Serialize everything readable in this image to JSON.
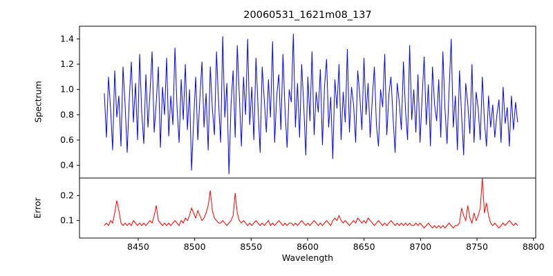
{
  "figure": {
    "title": "20060531_1621m08_137",
    "xlabel": "Wavelength",
    "background": "#ffffff",
    "frame_color": "#000000"
  },
  "chart_data": [
    {
      "type": "line",
      "name": "spectrum",
      "title": "20060531_1621m08_137",
      "ylabel": "Spectrum",
      "color": "#0000ff",
      "ylim": [
        0.3,
        1.5
      ],
      "yticks": [
        0.4,
        0.6,
        0.8,
        1.0,
        1.2,
        1.4
      ],
      "x_start": 8420,
      "x_end": 8786,
      "values": [
        0.97,
        0.62,
        1.1,
        0.85,
        0.52,
        1.15,
        0.78,
        0.95,
        0.55,
        1.18,
        0.88,
        0.5,
        0.92,
        1.22,
        0.74,
        1.05,
        0.6,
        1.28,
        0.82,
        0.57,
        1.12,
        0.7,
        0.98,
        1.3,
        0.66,
        0.9,
        1.18,
        0.54,
        1.02,
        0.8,
        1.25,
        0.63,
        0.95,
        0.72,
        1.33,
        0.86,
        0.58,
        1.08,
        0.76,
        1.2,
        0.68,
        1.0,
        0.36,
        0.75,
        1.1,
        0.6,
        0.93,
        1.22,
        0.7,
        0.97,
        0.52,
        1.18,
        0.85,
        0.64,
        1.3,
        0.9,
        0.58,
        1.42,
        0.78,
        1.05,
        0.33,
        0.88,
        1.15,
        0.62,
        1.35,
        0.95,
        0.55,
        1.1,
        0.8,
        1.4,
        0.72,
        1.02,
        0.6,
        1.25,
        0.86,
        0.5,
        1.18,
        0.92,
        0.66,
        1.08,
        0.78,
        1.38,
        0.58,
        0.95,
        1.12,
        0.68,
        1.28,
        0.84,
        0.54,
        1.0,
        0.9,
        1.44,
        0.7,
        1.05,
        0.62,
        1.2,
        0.88,
        0.48,
        1.1,
        0.75,
        1.3,
        0.64,
        0.98,
        0.82,
        1.16,
        0.56,
        1.02,
        1.24,
        0.7,
        0.94,
        0.45,
        1.08,
        0.85,
        1.2,
        0.6,
        0.98,
        0.74,
        1.32,
        0.66,
        1.02,
        0.88,
        0.58,
        1.15,
        0.95,
        0.68,
        1.25,
        0.8,
        1.05,
        0.62,
        0.92,
        1.18,
        0.72,
        0.55,
        1.0,
        0.86,
        1.28,
        0.64,
        0.96,
        1.1,
        0.78,
        0.5,
        1.05,
        0.9,
        0.68,
        1.22,
        0.84,
        0.6,
        1.35,
        0.76,
        1.0,
        0.66,
        1.12,
        0.58,
        0.94,
        1.26,
        0.72,
        1.04,
        0.55,
        1.18,
        0.88,
        0.75,
        1.08,
        0.62,
        1.3,
        0.85,
        0.57,
        1.0,
        1.4,
        0.7,
        0.95,
        0.52,
        1.15,
        0.8,
        0.48,
        1.05,
        0.88,
        0.65,
        1.2,
        0.58,
        0.98,
        0.85,
        0.6,
        1.1,
        0.75,
        0.55,
        0.95,
        0.7,
        0.88,
        0.62,
        0.8,
        0.92,
        0.58,
        1.02,
        0.73,
        0.86,
        0.55,
        0.95,
        0.68,
        0.9,
        0.74
      ]
    },
    {
      "type": "line",
      "name": "error",
      "ylabel": "Error",
      "xlabel": "Wavelength",
      "color": "#ff0000",
      "ylim": [
        0.03,
        0.27
      ],
      "yticks": [
        0.1,
        0.2
      ],
      "x_start": 8420,
      "x_end": 8786,
      "values": [
        0.08,
        0.09,
        0.08,
        0.1,
        0.09,
        0.13,
        0.18,
        0.14,
        0.09,
        0.08,
        0.09,
        0.08,
        0.09,
        0.08,
        0.1,
        0.09,
        0.08,
        0.09,
        0.08,
        0.09,
        0.08,
        0.09,
        0.1,
        0.09,
        0.12,
        0.16,
        0.1,
        0.09,
        0.08,
        0.09,
        0.08,
        0.09,
        0.08,
        0.09,
        0.1,
        0.09,
        0.08,
        0.1,
        0.09,
        0.11,
        0.1,
        0.12,
        0.15,
        0.13,
        0.11,
        0.14,
        0.12,
        0.1,
        0.11,
        0.13,
        0.16,
        0.22,
        0.14,
        0.11,
        0.1,
        0.09,
        0.09,
        0.1,
        0.09,
        0.08,
        0.09,
        0.1,
        0.12,
        0.21,
        0.13,
        0.1,
        0.09,
        0.1,
        0.09,
        0.08,
        0.09,
        0.08,
        0.09,
        0.1,
        0.09,
        0.08,
        0.09,
        0.08,
        0.09,
        0.1,
        0.08,
        0.09,
        0.08,
        0.09,
        0.1,
        0.09,
        0.08,
        0.09,
        0.08,
        0.09,
        0.09,
        0.08,
        0.09,
        0.08,
        0.09,
        0.1,
        0.09,
        0.08,
        0.09,
        0.08,
        0.09,
        0.1,
        0.09,
        0.08,
        0.09,
        0.08,
        0.09,
        0.1,
        0.09,
        0.08,
        0.1,
        0.11,
        0.1,
        0.12,
        0.1,
        0.09,
        0.1,
        0.09,
        0.08,
        0.09,
        0.1,
        0.09,
        0.11,
        0.1,
        0.09,
        0.1,
        0.09,
        0.11,
        0.1,
        0.09,
        0.08,
        0.09,
        0.1,
        0.09,
        0.08,
        0.09,
        0.08,
        0.09,
        0.1,
        0.09,
        0.08,
        0.09,
        0.08,
        0.09,
        0.08,
        0.09,
        0.08,
        0.09,
        0.08,
        0.08,
        0.09,
        0.08,
        0.09,
        0.08,
        0.07,
        0.08,
        0.09,
        0.08,
        0.07,
        0.08,
        0.07,
        0.08,
        0.07,
        0.08,
        0.07,
        0.08,
        0.09,
        0.08,
        0.07,
        0.08,
        0.08,
        0.09,
        0.15,
        0.12,
        0.1,
        0.16,
        0.11,
        0.09,
        0.13,
        0.1,
        0.12,
        0.15,
        0.27,
        0.13,
        0.17,
        0.12,
        0.09,
        0.08,
        0.09,
        0.08,
        0.07,
        0.08,
        0.09,
        0.08,
        0.09,
        0.1,
        0.09,
        0.08,
        0.09,
        0.08
      ]
    }
  ],
  "axes": {
    "xlim": [
      8398,
      8802
    ],
    "xticks": [
      8450,
      8500,
      8550,
      8600,
      8650,
      8700,
      8750,
      8800
    ]
  }
}
